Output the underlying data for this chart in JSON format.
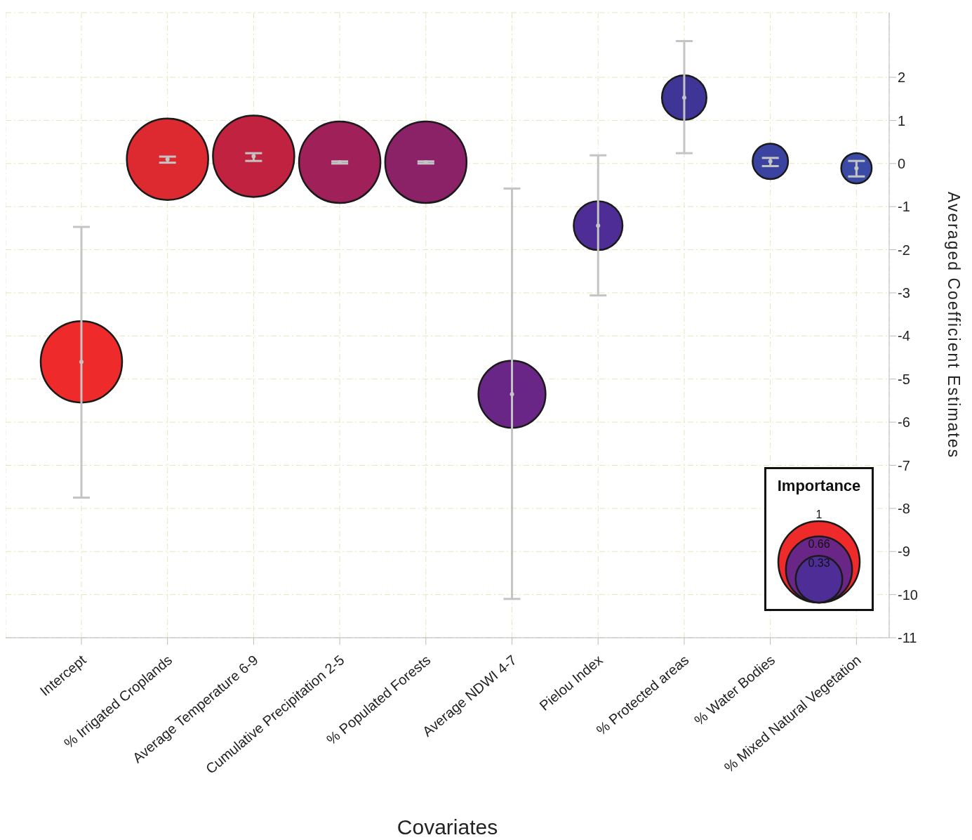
{
  "chart_data": {
    "type": "bubble",
    "xlabel": "Covariates",
    "ylabel": "Averaged Coefficient Estimates",
    "legend_title": "Importance",
    "categories": [
      "Intercept",
      "% Irrigated Croplands",
      "Average Temperature 6-9",
      "Cumulative Precipitation 2-5",
      "% Populated Forests",
      "Average NDWI 4-7",
      "Pielou Index",
      "% Protected areas",
      "% Water Bodies",
      "% Mixed Natural Vegetation"
    ],
    "values": [
      -4.6,
      0.1,
      0.17,
      0.03,
      0.03,
      -5.35,
      -1.44,
      1.53,
      0.05,
      -0.11
    ],
    "errors": [
      [
        -7.75,
        -1.47
      ],
      [
        0.02,
        0.16
      ],
      [
        0.06,
        0.24
      ],
      [
        0.0,
        0.05
      ],
      [
        0.0,
        0.05
      ],
      [
        -10.1,
        -0.58
      ],
      [
        -3.06,
        0.19
      ],
      [
        0.24,
        2.84
      ],
      [
        -0.06,
        0.13
      ],
      [
        -0.3,
        0.06
      ]
    ],
    "sizes": [
      1,
      1,
      1,
      1,
      1,
      0.68,
      0.36,
      0.3,
      0.19,
      0.14
    ],
    "size_legend": [
      0.33,
      0.66,
      1
    ],
    "colors": [
      "#ee2a2a",
      "#dc2a30",
      "#c0223f",
      "#a0205a",
      "#8b2268",
      "#6a2687",
      "#4e2e96",
      "#3e3597",
      "#3a44a0",
      "#3a4aa5"
    ],
    "ylim": [
      -11,
      3.5
    ],
    "yticks": [
      -11,
      -10,
      -9,
      -8,
      -7,
      -6,
      -5,
      -4,
      -3,
      -2,
      -1,
      0,
      1,
      2
    ],
    "grid": true
  }
}
